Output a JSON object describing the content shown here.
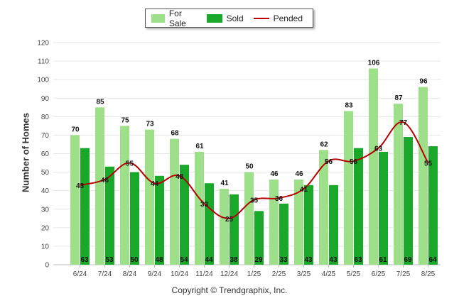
{
  "legend": {
    "for_sale": "For Sale",
    "sold": "Sold",
    "pended": "Pended"
  },
  "footer": {
    "copyright": "Copyright © Trendgraphix, Inc."
  },
  "colors": {
    "for_sale": "#9ee08a",
    "sold": "#1aa82a",
    "pended": "#b80000",
    "grid": "#e6e6e6"
  },
  "chart_data": {
    "type": "bar",
    "title": "",
    "xlabel": "",
    "ylabel": "Number of Homes",
    "ylim": [
      0,
      120
    ],
    "yticks": [
      0,
      10,
      20,
      30,
      40,
      50,
      60,
      70,
      80,
      90,
      100,
      110,
      120
    ],
    "grid": true,
    "legend_position": "top-center",
    "categories": [
      "6/24",
      "7/24",
      "8/24",
      "9/24",
      "10/24",
      "11/24",
      "12/24",
      "1/25",
      "2/25",
      "3/25",
      "4/25",
      "5/25",
      "6/25",
      "7/25",
      "8/25"
    ],
    "series": [
      {
        "name": "For Sale",
        "type": "bar",
        "values": [
          70,
          85,
          75,
          73,
          68,
          61,
          41,
          50,
          46,
          46,
          62,
          83,
          106,
          87,
          96
        ]
      },
      {
        "name": "Sold",
        "type": "bar",
        "values": [
          63,
          53,
          50,
          48,
          54,
          44,
          38,
          29,
          33,
          43,
          43,
          63,
          61,
          69,
          64
        ]
      },
      {
        "name": "Pended",
        "type": "line",
        "values": [
          43,
          46,
          55,
          44,
          48,
          33,
          25,
          35,
          36,
          41,
          56,
          56,
          63,
          77,
          55
        ]
      }
    ]
  }
}
